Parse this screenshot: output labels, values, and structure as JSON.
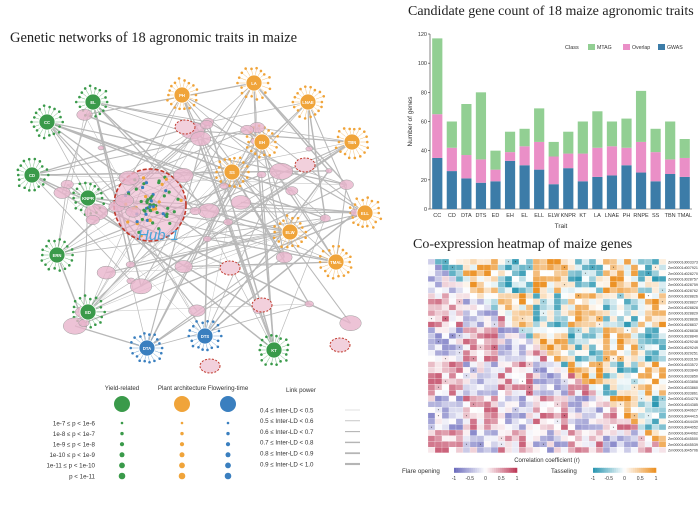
{
  "network": {
    "title": "Genetic networks of 18 agronomic traits in maize",
    "hub_label": "Hub-1",
    "hubs": [
      {
        "label": "CC",
        "color": "#3a9a4a"
      },
      {
        "label": "EL",
        "color": "#3a9a4a"
      },
      {
        "label": "CD",
        "color": "#3a9a4a"
      },
      {
        "label": "KNPR",
        "color": "#3a9a4a"
      },
      {
        "label": "ERN",
        "color": "#3a9a4a"
      },
      {
        "label": "ED",
        "color": "#3a9a4a"
      },
      {
        "label": "KT",
        "color": "#3a9a4a"
      },
      {
        "label": "PH",
        "color": "#f0a43a"
      },
      {
        "label": "LA",
        "color": "#f0a43a"
      },
      {
        "label": "LNAE",
        "color": "#f0a43a"
      },
      {
        "label": "EH",
        "color": "#f0a43a"
      },
      {
        "label": "SS",
        "color": "#f0a43a"
      },
      {
        "label": "TBN",
        "color": "#f0a43a"
      },
      {
        "label": "ELL",
        "color": "#f0a43a"
      },
      {
        "label": "ELW",
        "color": "#f0a43a"
      },
      {
        "label": "TMAL",
        "color": "#f0a43a"
      },
      {
        "label": "DTA",
        "color": "#3a7fbf"
      },
      {
        "label": "DTS",
        "color": "#3a7fbf"
      }
    ],
    "legend": {
      "classes": [
        "Yield-related",
        "Plant architecture",
        "Flowering-time"
      ],
      "class_colors": [
        "#3a9a4a",
        "#f0a43a",
        "#3a7fbf"
      ],
      "p_bins": [
        "1e-7 ≤ p < 1e-6",
        "1e-8 ≤ p < 1e-7",
        "1e-9 ≤ p < 1e-8",
        "1e-10 ≤ p < 1e-9",
        "1e-11 ≤ p < 1e-10",
        "p < 1e-11"
      ],
      "link_title": "Link power",
      "link_bins": [
        "0.4 ≤ Inter-LD < 0.5",
        "0.5 ≤ Inter-LD < 0.6",
        "0.6 ≤ Inter-LD < 0.7",
        "0.7 ≤ Inter-LD < 0.8",
        "0.8 ≤ Inter-LD < 0.9",
        "0.9 ≤ Inter-LD < 1.0"
      ]
    }
  },
  "bar_chart": {
    "title": "Candidate gene count of 18 maize agronomic traits"
  },
  "chart_data": {
    "type": "bar",
    "stacked": true,
    "xlabel": "Trait",
    "ylabel": "Number of genes",
    "ylim": [
      0,
      120
    ],
    "yticks": [
      0,
      20,
      40,
      60,
      80,
      100,
      120
    ],
    "legend_title": "Class",
    "categories": [
      "CC",
      "CD",
      "DTA",
      "DTS",
      "ED",
      "EH",
      "EL",
      "ELL",
      "ELW",
      "KNPR",
      "KT",
      "LA",
      "LNAE",
      "PH",
      "RNPE",
      "SS",
      "TBN",
      "TMAL"
    ],
    "series": [
      {
        "name": "GWAS",
        "color": "#3c7ca8",
        "values": [
          35,
          26,
          21,
          18,
          19,
          33,
          30,
          27,
          17,
          28,
          19,
          22,
          23,
          30,
          25,
          19,
          24,
          22
        ]
      },
      {
        "name": "Overlap",
        "color": "#ea8fc7",
        "values": [
          30,
          16,
          16,
          16,
          8,
          6,
          13,
          19,
          19,
          10,
          19,
          20,
          20,
          12,
          21,
          20,
          10,
          13
        ]
      },
      {
        "name": "MTAG",
        "color": "#92cf93",
        "values": [
          52,
          18,
          35,
          46,
          13,
          14,
          12,
          23,
          10,
          15,
          22,
          25,
          17,
          20,
          35,
          16,
          26,
          13
        ]
      }
    ]
  },
  "heatmap": {
    "title": "Co-expression heatmap of maize genes",
    "genes": [
      "Zm00001d003373",
      "Zm00001d007921",
      "Zm00001d028270",
      "Zm00001d028757",
      "Zm00001d028759",
      "Zm00001d028762",
      "Zm00001d028826",
      "Zm00001d028827",
      "Zm00001d028828",
      "Zm00001d028829",
      "Zm00001d028836",
      "Zm00001d028837",
      "Zm00001d028838",
      "Zm00001d028840",
      "Zm00001d029248",
      "Zm00001d029249",
      "Zm00001d029251",
      "Zm00001d033150",
      "Zm00001d033572",
      "Zm00001d033849",
      "Zm00001d033850",
      "Zm00001d033858",
      "Zm00001d033860",
      "Zm00001d033861",
      "Zm00001d034278",
      "Zm00001d034385",
      "Zm00001d040627",
      "Zm00001d044415",
      "Zm00001d044439",
      "Zm00001d044052",
      "Zm00001d044062",
      "Zm00001d045500",
      "Zm00001d045539",
      "Zm00001d045706"
    ],
    "axis_title": "Correlation coefficient (r)",
    "left_label": "Flare opening",
    "right_label": "Tasseling",
    "ticks": [
      "-1",
      "-0.5",
      "0",
      "0.5",
      "1"
    ]
  }
}
